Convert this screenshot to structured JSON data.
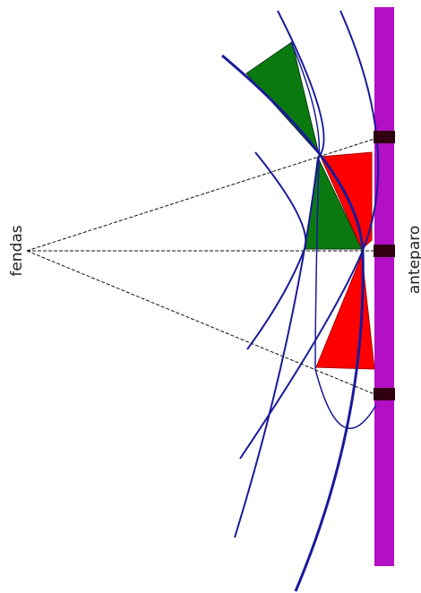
{
  "labels": {
    "slits": "fendas",
    "screen": "anteparo"
  }
}
